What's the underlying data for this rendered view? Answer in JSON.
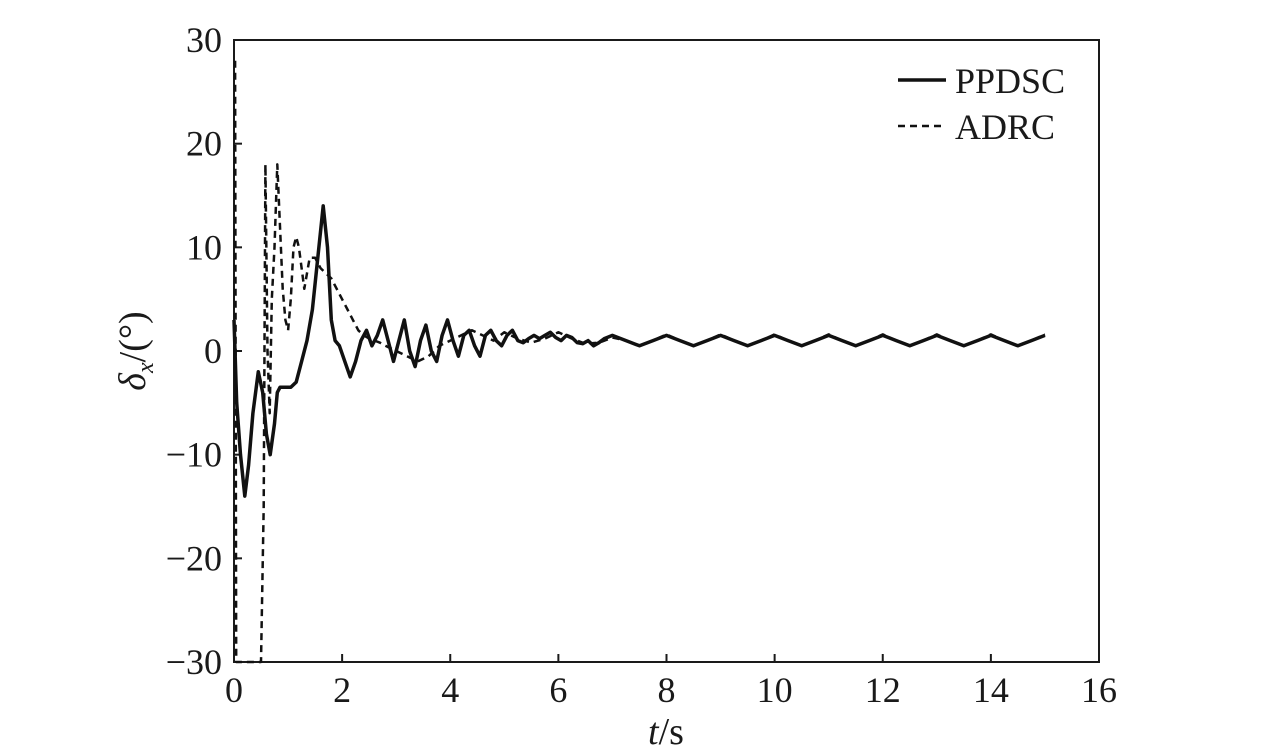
{
  "chart_data": {
    "type": "line",
    "xlabel": "t/s",
    "ylabel": "δx/(°)",
    "xlim": [
      0,
      16
    ],
    "ylim": [
      -30,
      30
    ],
    "xticks": [
      0,
      2,
      4,
      6,
      8,
      10,
      12,
      14,
      16
    ],
    "yticks": [
      -30,
      -20,
      -10,
      0,
      10,
      20,
      30
    ],
    "grid": false,
    "legend_position": "top-right",
    "series": [
      {
        "name": "PPDSC",
        "style": "solid",
        "color": "#111111",
        "x": [
          0,
          0.05,
          0.12,
          0.2,
          0.27,
          0.35,
          0.45,
          0.53,
          0.6,
          0.67,
          0.75,
          0.8,
          0.85,
          0.95,
          1.05,
          1.15,
          1.25,
          1.35,
          1.45,
          1.55,
          1.65,
          1.73,
          1.8,
          1.87,
          1.95,
          2.05,
          2.15,
          2.25,
          2.35,
          2.45,
          2.55,
          2.65,
          2.75,
          2.85,
          2.95,
          3.05,
          3.15,
          3.25,
          3.35,
          3.45,
          3.55,
          3.65,
          3.75,
          3.85,
          3.95,
          4.05,
          4.15,
          4.25,
          4.35,
          4.45,
          4.55,
          4.65,
          4.75,
          4.85,
          4.95,
          5.05,
          5.15,
          5.25,
          5.35,
          5.45,
          5.55,
          5.65,
          5.75,
          5.85,
          5.95,
          6.05,
          6.15,
          6.25,
          6.35,
          6.45,
          6.55,
          6.65,
          6.75,
          6.85,
          7.0,
          7.25,
          7.5,
          7.75,
          8.0,
          8.25,
          8.5,
          8.75,
          9.0,
          9.25,
          9.5,
          9.75,
          10.0,
          10.25,
          10.5,
          10.75,
          11.0,
          11.25,
          11.5,
          11.75,
          12.0,
          12.25,
          12.5,
          12.75,
          13.0,
          13.25,
          13.5,
          13.75,
          14.0,
          14.25,
          14.5,
          14.75,
          15.0
        ],
        "y": [
          3,
          -5,
          -10,
          -14,
          -11,
          -6,
          -2,
          -4,
          -8,
          -10,
          -7,
          -4,
          -3.5,
          -3.5,
          -3.5,
          -3,
          -1,
          1,
          4,
          9,
          14,
          10,
          3,
          1,
          0.5,
          -1,
          -2.5,
          -1,
          1,
          2,
          0.5,
          1.5,
          3,
          1,
          -1,
          1,
          3,
          0,
          -1.5,
          1,
          2.5,
          0,
          -1,
          1.5,
          3,
          1,
          -0.5,
          1.5,
          2,
          0.5,
          -0.5,
          1.5,
          2,
          1,
          0.5,
          1.5,
          2,
          1,
          0.8,
          1.2,
          1.5,
          1.2,
          1.5,
          1.8,
          1.3,
          1.0,
          1.5,
          1.3,
          0.8,
          0.7,
          1.0,
          0.5,
          0.8,
          1.2,
          1.5,
          1.0,
          0.5,
          1.0,
          1.5,
          1.0,
          0.5,
          1.0,
          1.5,
          1.0,
          0.5,
          1.0,
          1.5,
          1.0,
          0.5,
          1.0,
          1.5,
          1.0,
          0.5,
          1.0,
          1.5,
          1.0,
          0.5,
          1.0,
          1.5,
          1.0,
          0.5,
          1.0,
          1.5,
          1.0,
          0.5,
          1.0,
          1.5
        ]
      },
      {
        "name": "ADRC",
        "style": "dashed",
        "color": "#111111",
        "x": [
          0.02,
          0.04,
          0.1,
          0.2,
          0.3,
          0.4,
          0.5,
          0.55,
          0.58,
          0.62,
          0.66,
          0.7,
          0.75,
          0.8,
          0.85,
          0.9,
          0.95,
          1.0,
          1.05,
          1.1,
          1.15,
          1.2,
          1.3,
          1.4,
          1.5,
          1.6,
          1.7,
          1.8,
          1.9,
          2.0,
          2.1,
          2.2,
          2.3,
          2.4,
          2.5,
          2.6,
          2.7,
          2.8,
          3.0,
          3.2,
          3.4,
          3.6,
          3.8,
          4.0,
          4.2,
          4.4,
          4.6,
          4.8,
          5.0,
          5.25,
          5.5,
          5.75,
          6.0,
          6.25,
          6.5,
          6.75,
          7.0,
          7.25,
          7.5,
          7.75,
          8.0,
          8.25,
          8.5,
          8.75,
          9.0,
          9.25,
          9.5,
          9.75,
          10.0,
          10.25,
          10.5,
          10.75,
          11.0,
          11.25,
          11.5,
          11.75,
          12.0,
          12.25,
          12.5,
          12.75,
          13.0,
          13.25,
          13.5,
          13.75,
          14.0,
          14.25,
          14.5,
          14.75,
          15.0
        ],
        "y": [
          28,
          -30,
          -30,
          -30,
          -30,
          -30,
          -30,
          -15,
          18,
          0,
          -6,
          5,
          10,
          18,
          12,
          6,
          3,
          2,
          5,
          10,
          11,
          10,
          6,
          9,
          9,
          8,
          7.5,
          7,
          6,
          5,
          4,
          3,
          2,
          1.5,
          1.2,
          1,
          0.8,
          0.5,
          0,
          -0.5,
          -1,
          -0.5,
          0.5,
          1.0,
          1.5,
          2.0,
          1.5,
          1.0,
          1.8,
          1.2,
          0.8,
          1.2,
          1.8,
          1.2,
          0.7,
          0.8,
          1.3,
          1.0,
          0.5,
          1.0,
          1.6,
          1.0,
          0.5,
          1.0,
          1.6,
          1.0,
          0.5,
          1.0,
          1.6,
          1.0,
          0.5,
          1.0,
          1.6,
          1.0,
          0.5,
          1.0,
          1.6,
          1.0,
          0.5,
          1.0,
          1.6,
          1.0,
          0.5,
          1.0,
          1.6,
          1.0,
          0.5,
          1.0,
          1.6
        ]
      }
    ]
  }
}
